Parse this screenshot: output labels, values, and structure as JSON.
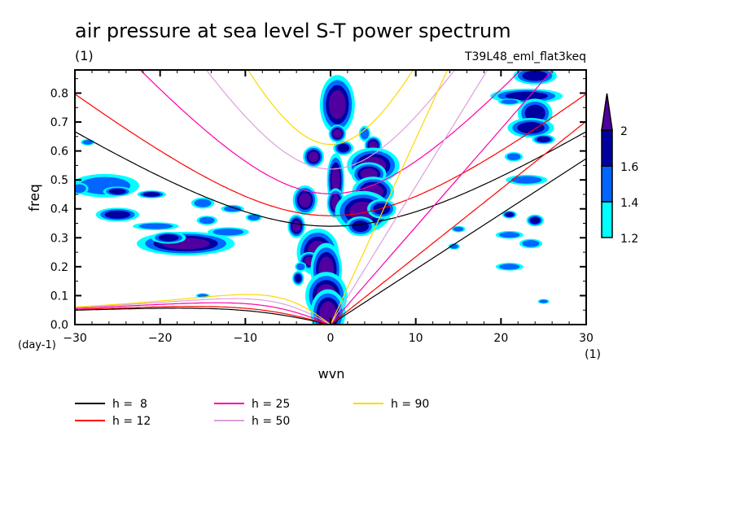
{
  "chart_data": {
    "type": "heatmap",
    "title": "air pressure at sea level S-T power spectrum",
    "units_label": "(1)",
    "experiment_label": "T39L48_eml_flat3keq",
    "xlabel": "wvn",
    "ylabel": "freq",
    "x_units": "(1)",
    "y_units": "(day-1)",
    "xlim": [
      -30,
      30
    ],
    "ylim": [
      0.0,
      0.88
    ],
    "xticks": [
      -30,
      -20,
      -10,
      0,
      10,
      20,
      30
    ],
    "xtick_labels": [
      "−30",
      "−20",
      "−10",
      "0",
      "10",
      "20",
      "30"
    ],
    "yticks": [
      0.0,
      0.1,
      0.2,
      0.3,
      0.4,
      0.5,
      0.6,
      0.7,
      0.8
    ],
    "ytick_labels": [
      "0.0",
      "0.1",
      "0.2",
      "0.3",
      "0.4",
      "0.5",
      "0.6",
      "0.7",
      "0.8"
    ],
    "colorbar": {
      "levels": [
        1.2,
        1.4,
        1.6,
        2
      ],
      "level_labels": [
        "1.2",
        "1.4",
        "1.6",
        "2"
      ],
      "colors": [
        "#00FFFF",
        "#0066FF",
        "#0000A0",
        "#5000A0"
      ],
      "extend": "max"
    },
    "dispersion_curves": {
      "legend_position": "bottom-left",
      "series": [
        {
          "name": "h =  8",
          "h": 8,
          "color": "#000000"
        },
        {
          "name": "h = 12",
          "h": 12,
          "color": "#FF0000"
        },
        {
          "name": "h = 25",
          "h": 25,
          "color": "#FF00AA"
        },
        {
          "name": "h = 50",
          "h": 50,
          "color": "#DDA0DD"
        },
        {
          "name": "h = 90",
          "h": 90,
          "color": "#FFD700"
        }
      ]
    },
    "contour_regions": [
      {
        "wvn": 0.8,
        "freq": 0.76,
        "rx": 1.0,
        "ry": 0.05,
        "level": 3
      },
      {
        "wvn": 0.8,
        "freq": 0.66,
        "rx": 0.5,
        "ry": 0.015,
        "level": 3
      },
      {
        "wvn": 1.5,
        "freq": 0.61,
        "rx": 0.7,
        "ry": 0.015,
        "level": 2
      },
      {
        "wvn": -2.0,
        "freq": 0.58,
        "rx": 0.6,
        "ry": 0.018,
        "level": 3
      },
      {
        "wvn": 0.6,
        "freq": 0.5,
        "rx": 0.5,
        "ry": 0.045,
        "level": 3
      },
      {
        "wvn": 0.6,
        "freq": 0.42,
        "rx": 0.5,
        "ry": 0.025,
        "level": 3
      },
      {
        "wvn": -3.0,
        "freq": 0.43,
        "rx": 0.7,
        "ry": 0.025,
        "level": 3
      },
      {
        "wvn": -4.0,
        "freq": 0.34,
        "rx": 0.5,
        "ry": 0.02,
        "level": 3
      },
      {
        "wvn": 4.0,
        "freq": 0.66,
        "rx": 0.5,
        "ry": 0.02,
        "level": 1
      },
      {
        "wvn": 5.0,
        "freq": 0.62,
        "rx": 0.5,
        "ry": 0.015,
        "level": 3
      },
      {
        "wvn": 5.0,
        "freq": 0.55,
        "rx": 1.5,
        "ry": 0.03,
        "level": 3
      },
      {
        "wvn": 4.5,
        "freq": 0.52,
        "rx": 1.0,
        "ry": 0.02,
        "level": 3
      },
      {
        "wvn": 5.0,
        "freq": 0.46,
        "rx": 1.2,
        "ry": 0.025,
        "level": 3
      },
      {
        "wvn": 3.8,
        "freq": 0.39,
        "rx": 1.6,
        "ry": 0.035,
        "level": 3
      },
      {
        "wvn": 6.0,
        "freq": 0.4,
        "rx": 1.0,
        "ry": 0.02,
        "level": 2
      },
      {
        "wvn": 3.5,
        "freq": 0.34,
        "rx": 1.0,
        "ry": 0.02,
        "level": 2
      },
      {
        "wvn": -1.5,
        "freq": 0.25,
        "rx": 1.2,
        "ry": 0.04,
        "level": 3
      },
      {
        "wvn": -2.5,
        "freq": 0.22,
        "rx": 0.6,
        "ry": 0.015,
        "level": 3
      },
      {
        "wvn": -0.5,
        "freq": 0.19,
        "rx": 0.9,
        "ry": 0.045,
        "level": 3
      },
      {
        "wvn": -3.8,
        "freq": 0.16,
        "rx": 0.4,
        "ry": 0.015,
        "level": 2
      },
      {
        "wvn": -0.5,
        "freq": 0.1,
        "rx": 1.2,
        "ry": 0.04,
        "level": 3
      },
      {
        "wvn": -0.3,
        "freq": 0.04,
        "rx": 1.0,
        "ry": 0.04,
        "level": 3
      },
      {
        "wvn": -17.0,
        "freq": 0.28,
        "rx": 2.8,
        "ry": 0.02,
        "level": 3
      },
      {
        "wvn": -19.0,
        "freq": 0.3,
        "rx": 1.2,
        "ry": 0.012,
        "level": 2
      },
      {
        "wvn": -20.5,
        "freq": 0.34,
        "rx": 2.0,
        "ry": 0.01,
        "level": 1
      },
      {
        "wvn": -25.0,
        "freq": 0.38,
        "rx": 1.5,
        "ry": 0.014,
        "level": 2
      },
      {
        "wvn": -26.5,
        "freq": 0.48,
        "rx": 3.0,
        "ry": 0.03,
        "level": 1
      },
      {
        "wvn": -25.0,
        "freq": 0.46,
        "rx": 1.0,
        "ry": 0.01,
        "level": 2
      },
      {
        "wvn": -21.0,
        "freq": 0.45,
        "rx": 1.0,
        "ry": 0.008,
        "level": 2
      },
      {
        "wvn": -29.5,
        "freq": 0.47,
        "rx": 0.8,
        "ry": 0.015,
        "level": 1
      },
      {
        "wvn": -28.5,
        "freq": 0.63,
        "rx": 0.6,
        "ry": 0.008,
        "level": 1
      },
      {
        "wvn": -15.0,
        "freq": 0.42,
        "rx": 1.0,
        "ry": 0.014,
        "level": 1
      },
      {
        "wvn": -14.5,
        "freq": 0.36,
        "rx": 0.9,
        "ry": 0.012,
        "level": 1
      },
      {
        "wvn": -11.5,
        "freq": 0.4,
        "rx": 1.0,
        "ry": 0.01,
        "level": 1
      },
      {
        "wvn": -9.0,
        "freq": 0.37,
        "rx": 0.7,
        "ry": 0.01,
        "level": 1
      },
      {
        "wvn": -12.0,
        "freq": 0.32,
        "rx": 1.8,
        "ry": 0.012,
        "level": 1
      },
      {
        "wvn": -3.5,
        "freq": 0.2,
        "rx": 0.5,
        "ry": 0.012,
        "level": 1
      },
      {
        "wvn": -15.0,
        "freq": 0.1,
        "rx": 0.6,
        "ry": 0.006,
        "level": 1
      },
      {
        "wvn": 24.0,
        "freq": 0.86,
        "rx": 1.5,
        "ry": 0.018,
        "level": 2
      },
      {
        "wvn": 23.0,
        "freq": 0.79,
        "rx": 2.5,
        "ry": 0.015,
        "level": 2
      },
      {
        "wvn": 21.0,
        "freq": 0.77,
        "rx": 1.0,
        "ry": 0.008,
        "level": 1
      },
      {
        "wvn": 24.0,
        "freq": 0.73,
        "rx": 1.2,
        "ry": 0.03,
        "level": 2
      },
      {
        "wvn": 23.5,
        "freq": 0.68,
        "rx": 1.6,
        "ry": 0.02,
        "level": 2
      },
      {
        "wvn": 25.0,
        "freq": 0.64,
        "rx": 0.8,
        "ry": 0.01,
        "level": 2
      },
      {
        "wvn": 21.5,
        "freq": 0.58,
        "rx": 0.8,
        "ry": 0.012,
        "level": 1
      },
      {
        "wvn": 23.0,
        "freq": 0.5,
        "rx": 1.8,
        "ry": 0.013,
        "level": 1
      },
      {
        "wvn": 21.0,
        "freq": 0.38,
        "rx": 0.5,
        "ry": 0.008,
        "level": 2
      },
      {
        "wvn": 24.0,
        "freq": 0.36,
        "rx": 0.6,
        "ry": 0.012,
        "level": 2
      },
      {
        "wvn": 21.0,
        "freq": 0.31,
        "rx": 1.2,
        "ry": 0.01,
        "level": 1
      },
      {
        "wvn": 21.0,
        "freq": 0.2,
        "rx": 1.2,
        "ry": 0.01,
        "level": 1
      },
      {
        "wvn": 23.5,
        "freq": 0.28,
        "rx": 1.0,
        "ry": 0.012,
        "level": 1
      },
      {
        "wvn": 25.0,
        "freq": 0.08,
        "rx": 0.5,
        "ry": 0.006,
        "level": 1
      },
      {
        "wvn": 15.0,
        "freq": 0.33,
        "rx": 0.6,
        "ry": 0.008,
        "level": 1
      },
      {
        "wvn": 14.5,
        "freq": 0.27,
        "rx": 0.5,
        "ry": 0.008,
        "level": 1
      }
    ]
  }
}
